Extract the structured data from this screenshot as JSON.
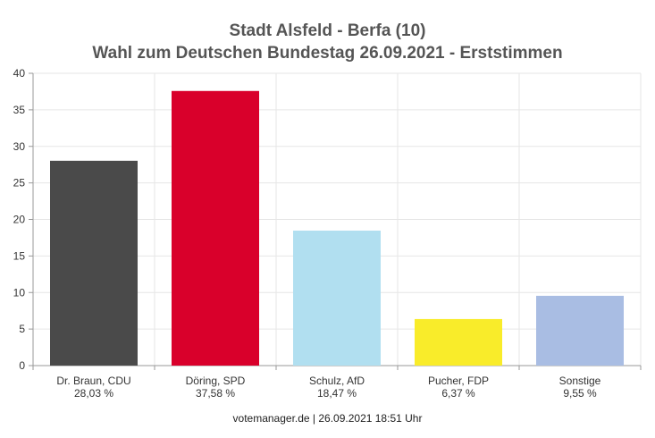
{
  "chart_data": {
    "type": "bar",
    "title": "Stadt Alsfeld - Berfa (10)",
    "subtitle": "Wahl zum Deutschen Bundestag 26.09.2021  - Erststimmen",
    "categories": [
      "Dr. Braun, CDU",
      "Döring, SPD",
      "Schulz, AfD",
      "Pucher, FDP",
      "Sonstige"
    ],
    "value_labels": [
      "28,03 %",
      "37,58 %",
      "18,47 %",
      "6,37 %",
      "9,55 %"
    ],
    "values": [
      28.03,
      37.58,
      18.47,
      6.37,
      9.55
    ],
    "colors": [
      "#4a4a4a",
      "#d9002b",
      "#b1dff0",
      "#f9ec2a",
      "#a9bde3"
    ],
    "ylim": [
      0,
      40
    ],
    "yticks": [
      0,
      5,
      10,
      15,
      20,
      25,
      30,
      35,
      40
    ],
    "grid": true,
    "xlabel": "",
    "ylabel": ""
  },
  "footer": "votemanager.de | 26.09.2021 18:51 Uhr"
}
